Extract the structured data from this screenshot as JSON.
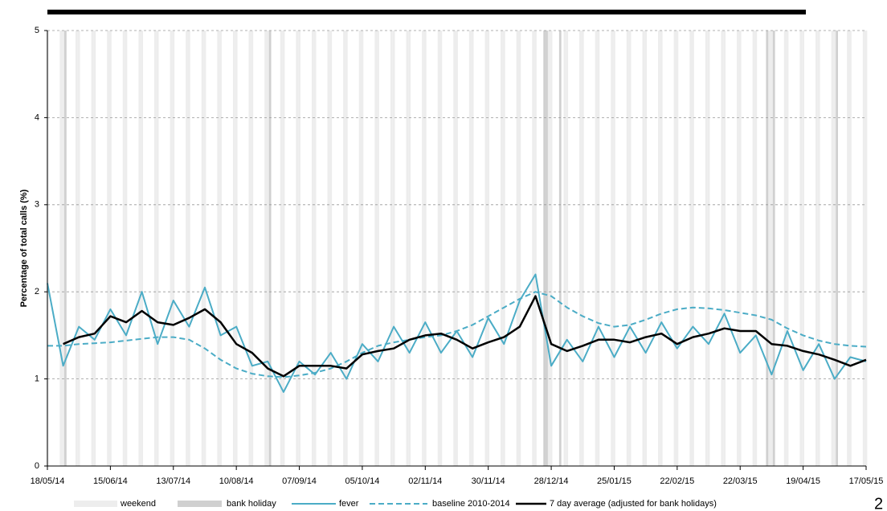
{
  "chart_data": {
    "type": "line",
    "ylabel": "Percentage of total calls (%)",
    "page_number": "2",
    "x": [
      "18/05/14",
      "25/05/14",
      "01/06/14",
      "08/06/14",
      "15/06/14",
      "22/06/14",
      "29/06/14",
      "06/07/14",
      "13/07/14",
      "20/07/14",
      "27/07/14",
      "03/08/14",
      "10/08/14",
      "17/08/14",
      "24/08/14",
      "31/08/14",
      "07/09/14",
      "14/09/14",
      "21/09/14",
      "28/09/14",
      "05/10/14",
      "12/10/14",
      "19/10/14",
      "26/10/14",
      "02/11/14",
      "09/11/14",
      "16/11/14",
      "23/11/14",
      "30/11/14",
      "07/12/14",
      "14/12/14",
      "21/12/14",
      "28/12/14",
      "04/01/15",
      "11/01/15",
      "18/01/15",
      "25/01/15",
      "01/02/15",
      "08/02/15",
      "15/02/15",
      "22/02/15",
      "01/03/15",
      "08/03/15",
      "15/03/15",
      "22/03/15",
      "29/03/15",
      "05/04/15",
      "12/04/15",
      "19/04/15",
      "26/04/15",
      "03/05/15",
      "10/05/15",
      "17/05/15"
    ],
    "series": [
      {
        "name": "fever",
        "color": "#4bacc6",
        "dashed": false,
        "width": 2,
        "values": [
          2.1,
          1.15,
          1.6,
          1.45,
          1.8,
          1.5,
          2.0,
          1.4,
          1.9,
          1.6,
          2.05,
          1.5,
          1.6,
          1.15,
          1.2,
          0.85,
          1.2,
          1.05,
          1.3,
          1.0,
          1.4,
          1.2,
          1.6,
          1.3,
          1.65,
          1.3,
          1.55,
          1.25,
          1.7,
          1.4,
          1.9,
          2.2,
          1.15,
          1.45,
          1.2,
          1.6,
          1.25,
          1.6,
          1.3,
          1.65,
          1.35,
          1.6,
          1.4,
          1.75,
          1.3,
          1.5,
          1.05,
          1.55,
          1.1,
          1.4,
          1.0,
          1.25,
          1.2
        ]
      },
      {
        "name": "baseline 2010-2014",
        "color": "#4bacc6",
        "dashed": true,
        "width": 2,
        "values": [
          1.38,
          1.38,
          1.4,
          1.41,
          1.42,
          1.44,
          1.46,
          1.48,
          1.48,
          1.45,
          1.35,
          1.22,
          1.12,
          1.06,
          1.03,
          1.02,
          1.04,
          1.07,
          1.12,
          1.2,
          1.3,
          1.38,
          1.42,
          1.45,
          1.48,
          1.5,
          1.55,
          1.62,
          1.72,
          1.82,
          1.92,
          2.0,
          1.95,
          1.82,
          1.72,
          1.64,
          1.6,
          1.62,
          1.68,
          1.75,
          1.8,
          1.82,
          1.81,
          1.79,
          1.76,
          1.73,
          1.68,
          1.58,
          1.5,
          1.44,
          1.4,
          1.38,
          1.37
        ]
      },
      {
        "name": "7 day average (adjusted for bank holidays)",
        "color": "#000000",
        "dashed": false,
        "width": 2.5,
        "values": [
          null,
          1.4,
          1.48,
          1.52,
          1.72,
          1.65,
          1.78,
          1.65,
          1.62,
          1.7,
          1.8,
          1.65,
          1.4,
          1.3,
          1.12,
          1.03,
          1.15,
          1.15,
          1.15,
          1.12,
          1.28,
          1.32,
          1.35,
          1.45,
          1.5,
          1.52,
          1.45,
          1.35,
          1.42,
          1.48,
          1.6,
          1.95,
          1.4,
          1.32,
          1.38,
          1.45,
          1.45,
          1.42,
          1.48,
          1.52,
          1.4,
          1.48,
          1.52,
          1.58,
          1.55,
          1.55,
          1.4,
          1.38,
          1.32,
          1.28,
          1.22,
          1.15,
          1.22
        ]
      }
    ],
    "weekend": {
      "name": "weekend",
      "color": "#ededed"
    },
    "bank_holiday": {
      "name": "bank holiday",
      "color": "#d0d0d0",
      "dates": [
        "26/05/14",
        "25/08/14",
        "25/12/14",
        "26/12/14",
        "01/01/15",
        "03/04/15",
        "06/04/15",
        "04/05/15"
      ]
    },
    "xlim": [
      "18/05/14",
      "17/05/15"
    ],
    "xticks": [
      "18/05/14",
      "15/06/14",
      "13/07/14",
      "10/08/14",
      "07/09/14",
      "05/10/14",
      "02/11/14",
      "30/11/14",
      "28/12/14",
      "25/01/15",
      "22/02/15",
      "22/03/15",
      "19/04/15",
      "17/05/15"
    ],
    "ylim": [
      0,
      5
    ],
    "yticks": [
      0,
      1,
      2,
      3,
      4,
      5
    ],
    "grid": true
  }
}
